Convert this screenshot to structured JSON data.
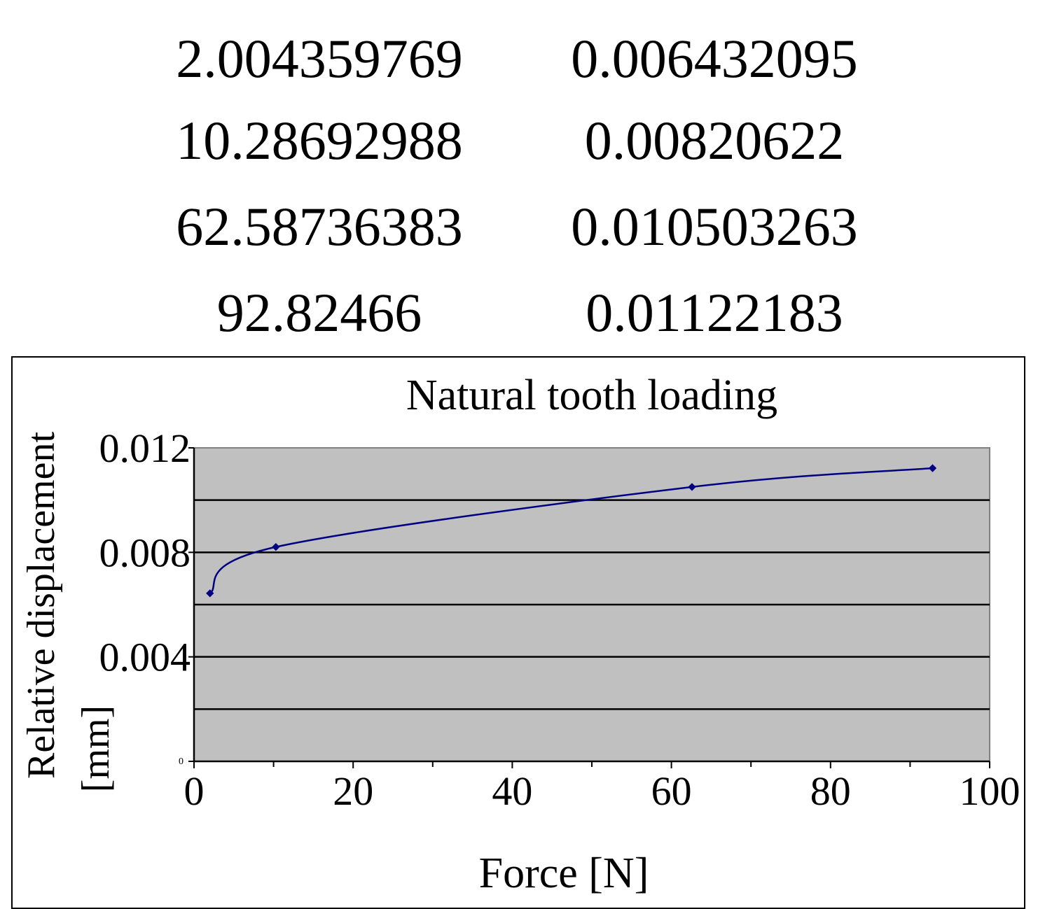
{
  "table": {
    "rows": [
      [
        "2.004359769",
        "0.006432095"
      ],
      [
        "10.28692988",
        "0.00820622"
      ],
      [
        "62.58736383",
        "0.010503263"
      ],
      [
        "92.82466",
        "0.01122183"
      ]
    ]
  },
  "chart_data": {
    "type": "line",
    "title": "Natural tooth loading",
    "xlabel": "Force [N]",
    "ylabel_line1": "Relative displacement",
    "ylabel_line2": "[mm]",
    "xlim": [
      0,
      100
    ],
    "ylim": [
      0,
      0.012
    ],
    "x_ticks": [
      0,
      20,
      40,
      60,
      80,
      100
    ],
    "x_tick_labels": [
      "0",
      "20",
      "40",
      "60",
      "80",
      "100"
    ],
    "y_ticks": [
      0,
      0.004,
      0.008,
      0.012
    ],
    "y_tick_labels": [
      "0",
      "0.004",
      "0.008",
      "0.012"
    ],
    "gridlines_y": [
      0.002,
      0.004,
      0.006,
      0.008,
      0.01
    ],
    "grid": true,
    "plot_background": "#c0c0c0",
    "series_color": "#000080",
    "series": [
      {
        "x": [
          2.004359769,
          10.28692988,
          62.58736383,
          92.82466
        ],
        "y": [
          0.006432095,
          0.00820622,
          0.010503263,
          0.01122183
        ]
      }
    ]
  }
}
